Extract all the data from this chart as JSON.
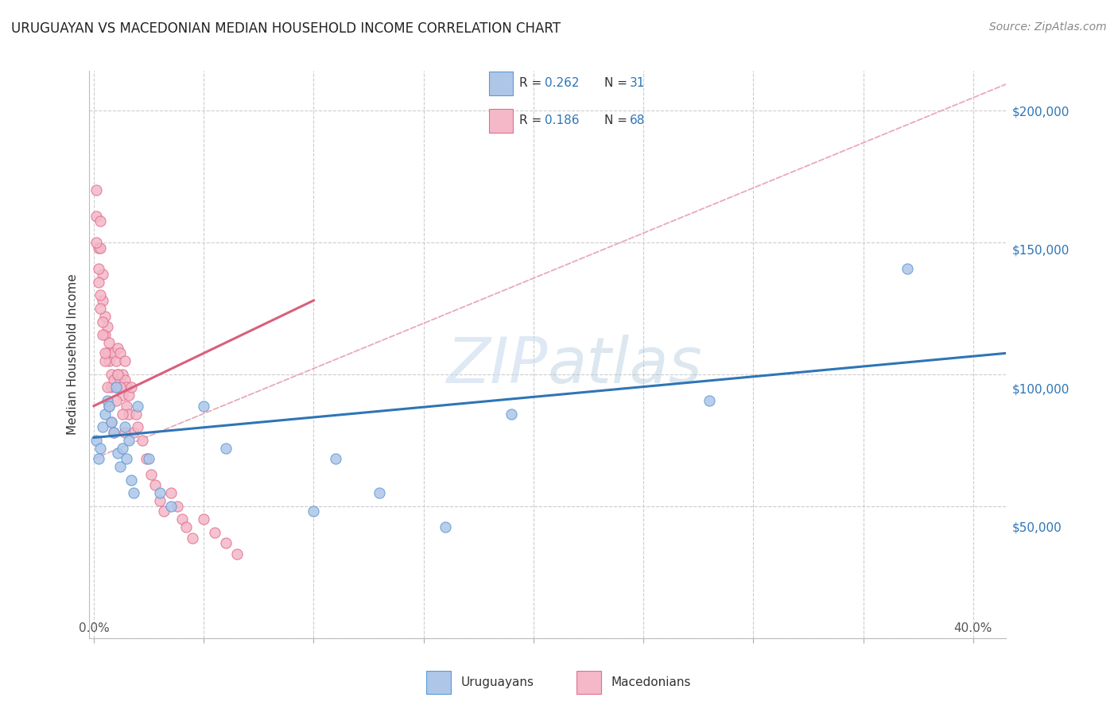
{
  "title": "URUGUAYAN VS MACEDONIAN MEDIAN HOUSEHOLD INCOME CORRELATION CHART",
  "source": "Source: ZipAtlas.com",
  "ylabel": "Median Household Income",
  "y_ticks": [
    0,
    50000,
    100000,
    150000,
    200000
  ],
  "y_ticklabels": [
    "",
    "$50,000",
    "$100,000",
    "$150,000",
    "$200,000"
  ],
  "x_ticks": [
    0.0,
    0.05,
    0.1,
    0.15,
    0.2,
    0.25,
    0.3,
    0.35,
    0.4
  ],
  "ylim": [
    10000,
    215000
  ],
  "xlim": [
    -0.002,
    0.415
  ],
  "uruguayan_color": "#aec6e8",
  "uruguayan_edge": "#5b9bd5",
  "macedonian_color": "#f4b8c8",
  "macedonian_edge": "#e07090",
  "trend_uruguayan_color": "#2e75b6",
  "trend_macedonian_color": "#d9607a",
  "trend_reference_color": "#e8a0b0",
  "watermark_zip": "ZIP",
  "watermark_atlas": "atlas",
  "uruguayan_x": [
    0.001,
    0.002,
    0.003,
    0.004,
    0.005,
    0.006,
    0.007,
    0.008,
    0.009,
    0.01,
    0.011,
    0.012,
    0.013,
    0.014,
    0.015,
    0.016,
    0.017,
    0.018,
    0.02,
    0.025,
    0.03,
    0.035,
    0.05,
    0.06,
    0.1,
    0.11,
    0.13,
    0.16,
    0.19,
    0.28,
    0.37
  ],
  "uruguayan_y": [
    75000,
    68000,
    72000,
    80000,
    85000,
    90000,
    88000,
    82000,
    78000,
    95000,
    70000,
    65000,
    72000,
    80000,
    68000,
    75000,
    60000,
    55000,
    88000,
    68000,
    55000,
    50000,
    88000,
    72000,
    48000,
    68000,
    55000,
    42000,
    85000,
    90000,
    140000
  ],
  "macedonian_x": [
    0.001,
    0.001,
    0.002,
    0.003,
    0.003,
    0.004,
    0.004,
    0.005,
    0.005,
    0.006,
    0.006,
    0.007,
    0.007,
    0.008,
    0.008,
    0.009,
    0.009,
    0.01,
    0.01,
    0.011,
    0.011,
    0.012,
    0.012,
    0.013,
    0.013,
    0.014,
    0.014,
    0.015,
    0.015,
    0.016,
    0.016,
    0.017,
    0.018,
    0.019,
    0.02,
    0.022,
    0.024,
    0.026,
    0.028,
    0.03,
    0.032,
    0.035,
    0.038,
    0.04,
    0.042,
    0.045,
    0.05,
    0.055,
    0.06,
    0.065,
    0.001,
    0.002,
    0.003,
    0.004,
    0.005,
    0.006,
    0.007,
    0.008,
    0.009,
    0.01,
    0.011,
    0.012,
    0.013,
    0.014,
    0.002,
    0.003,
    0.004,
    0.005
  ],
  "macedonian_y": [
    170000,
    160000,
    148000,
    158000,
    148000,
    138000,
    128000,
    122000,
    115000,
    118000,
    108000,
    112000,
    105000,
    100000,
    95000,
    108000,
    98000,
    105000,
    95000,
    110000,
    100000,
    108000,
    98000,
    100000,
    92000,
    105000,
    98000,
    95000,
    88000,
    92000,
    85000,
    95000,
    78000,
    85000,
    80000,
    75000,
    68000,
    62000,
    58000,
    52000,
    48000,
    55000,
    50000,
    45000,
    42000,
    38000,
    45000,
    40000,
    36000,
    32000,
    150000,
    140000,
    130000,
    120000,
    105000,
    95000,
    88000,
    82000,
    78000,
    90000,
    100000,
    95000,
    85000,
    78000,
    135000,
    125000,
    115000,
    108000
  ],
  "uru_trend_x": [
    0.0,
    0.415
  ],
  "uru_trend_y": [
    76000,
    108000
  ],
  "mac_trend_x": [
    0.0,
    0.1
  ],
  "mac_trend_y": [
    88000,
    128000
  ],
  "ref_trend_x": [
    0.0,
    0.415
  ],
  "ref_trend_y": [
    68000,
    210000
  ]
}
